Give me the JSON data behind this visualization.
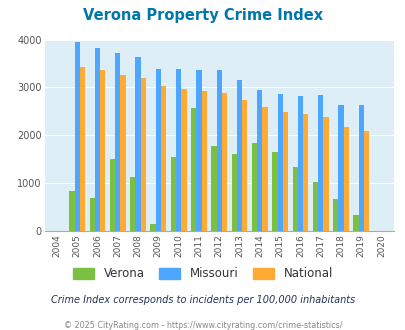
{
  "title": "Verona Property Crime Index",
  "years": [
    2004,
    2005,
    2006,
    2007,
    2008,
    2009,
    2010,
    2011,
    2012,
    2013,
    2014,
    2015,
    2016,
    2017,
    2018,
    2019,
    2020
  ],
  "verona": [
    0,
    830,
    680,
    1500,
    1120,
    150,
    1540,
    2580,
    1770,
    1610,
    1840,
    1650,
    1340,
    1020,
    660,
    340,
    0
  ],
  "missouri": [
    0,
    3960,
    3830,
    3720,
    3630,
    3390,
    3380,
    3360,
    3360,
    3150,
    2940,
    2870,
    2820,
    2840,
    2640,
    2640,
    0
  ],
  "national": [
    0,
    3430,
    3360,
    3270,
    3200,
    3030,
    2960,
    2920,
    2880,
    2730,
    2600,
    2490,
    2450,
    2380,
    2170,
    2100,
    0
  ],
  "verona_color": "#7bc043",
  "missouri_color": "#4da6ff",
  "national_color": "#ffaa33",
  "bg_color": "#ddeef6",
  "title_color": "#0077aa",
  "subtitle": "Crime Index corresponds to incidents per 100,000 inhabitants",
  "footer": "© 2025 CityRating.com - https://www.cityrating.com/crime-statistics/",
  "ylim": [
    0,
    4000
  ],
  "yticks": [
    0,
    1000,
    2000,
    3000,
    4000
  ]
}
